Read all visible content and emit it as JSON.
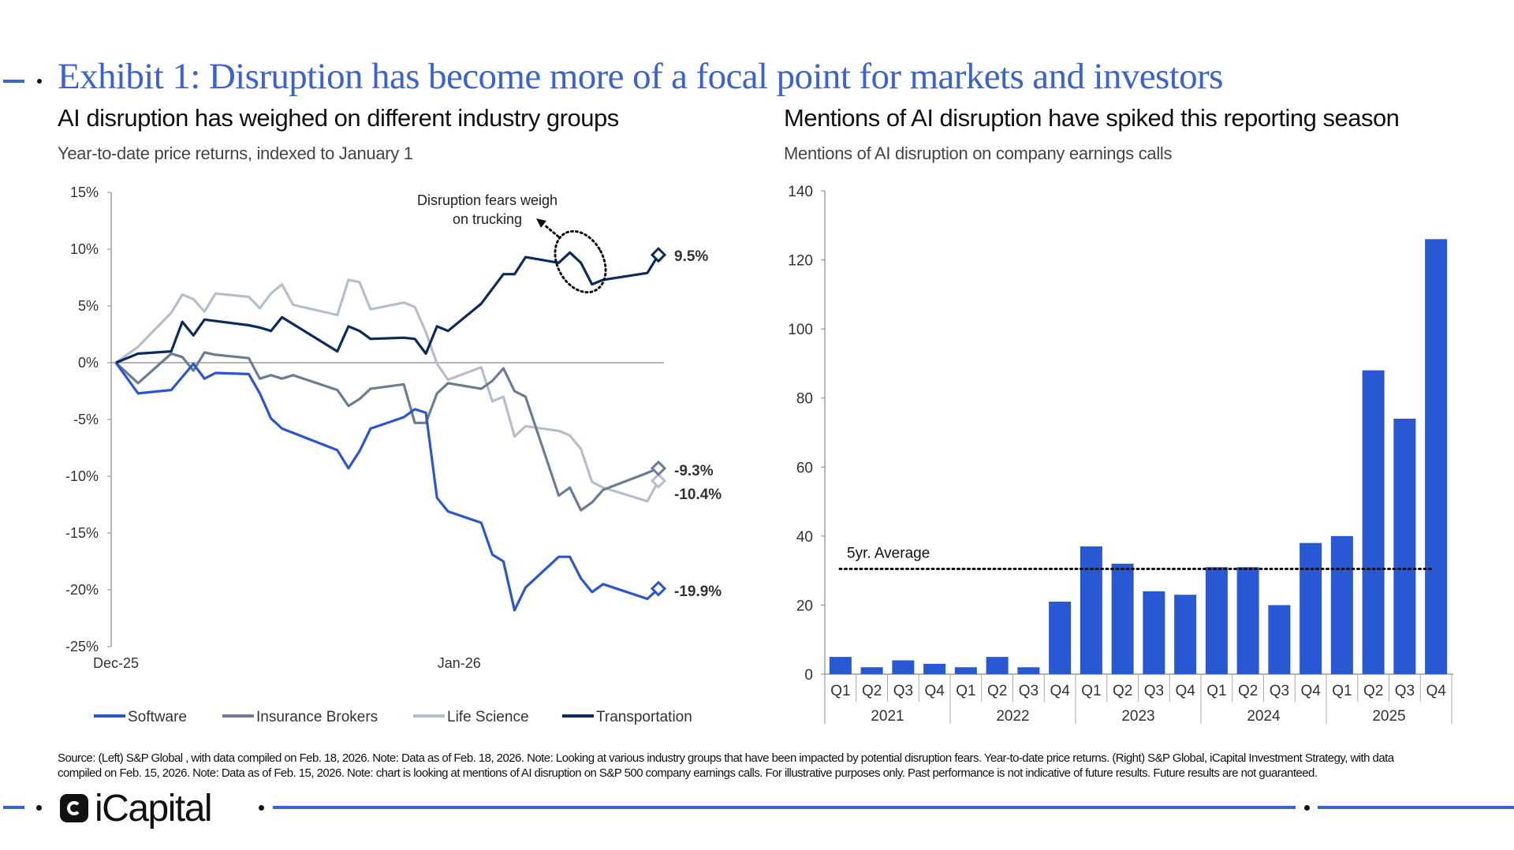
{
  "header": {
    "title": "Exhibit 1: Disruption has become more of a focal point for markets and investors"
  },
  "left_panel": {
    "title": "AI disruption has weighed on different industry groups",
    "subtitle": "Year-to-date price returns, indexed to January 1"
  },
  "right_panel": {
    "title": "Mentions of AI disruption have spiked this reporting season",
    "subtitle": "Mentions of AI disruption on company earnings calls"
  },
  "chart_data": [
    {
      "type": "line",
      "ylim": [
        -25,
        15
      ],
      "yticks": [
        15,
        10,
        5,
        0,
        -5,
        -10,
        -15,
        -20,
        -25
      ],
      "ytick_labels": [
        "15%",
        "10%",
        "5%",
        "0%",
        "-5%",
        "-10%",
        "-15%",
        "-20%",
        "-25%"
      ],
      "xlim": [
        0,
        49
      ],
      "xticks": [
        {
          "x": 0,
          "label": "Dec-25"
        },
        {
          "x": 31,
          "label": "Jan-26"
        }
      ],
      "legend_position": "bottom",
      "annotation": {
        "text_line1": "Disruption fears weigh",
        "text_line2": "on trucking"
      },
      "series": [
        {
          "name": "Software",
          "color": "#2b56d1",
          "end_label": "-19.9%",
          "points": [
            [
              0,
              0
            ],
            [
              2,
              -2.7
            ],
            [
              5,
              -2.4
            ],
            [
              7,
              -0.1
            ],
            [
              8,
              -1.4
            ],
            [
              9,
              -0.9
            ],
            [
              12,
              -1.0
            ],
            [
              13,
              -2.7
            ],
            [
              14,
              -4.9
            ],
            [
              15,
              -5.8
            ],
            [
              20,
              -7.7
            ],
            [
              21,
              -9.3
            ],
            [
              22,
              -7.8
            ],
            [
              23,
              -5.8
            ],
            [
              26,
              -4.8
            ],
            [
              27,
              -4.1
            ],
            [
              28,
              -4.4
            ],
            [
              29,
              -11.9
            ],
            [
              30,
              -13.1
            ],
            [
              33,
              -14.1
            ],
            [
              34,
              -16.9
            ],
            [
              35,
              -17.5
            ],
            [
              36,
              -21.8
            ],
            [
              37,
              -19.8
            ],
            [
              40,
              -17.1
            ],
            [
              41,
              -17.1
            ],
            [
              42,
              -19.0
            ],
            [
              43,
              -20.2
            ],
            [
              44,
              -19.5
            ],
            [
              48,
              -20.8
            ],
            [
              49,
              -19.9
            ]
          ]
        },
        {
          "name": "Insurance Brokers",
          "color": "#6b7d95",
          "end_label": "-9.3%",
          "points": [
            [
              0,
              0
            ],
            [
              2,
              -1.8
            ],
            [
              5,
              0.8
            ],
            [
              6,
              0.5
            ],
            [
              7,
              -0.7
            ],
            [
              8,
              0.9
            ],
            [
              9,
              0.7
            ],
            [
              12,
              0.4
            ],
            [
              13,
              -1.4
            ],
            [
              14,
              -1.1
            ],
            [
              15,
              -1.4
            ],
            [
              16,
              -1.1
            ],
            [
              20,
              -2.4
            ],
            [
              21,
              -3.8
            ],
            [
              22,
              -3.2
            ],
            [
              23,
              -2.3
            ],
            [
              26,
              -1.9
            ],
            [
              27,
              -5.3
            ],
            [
              28,
              -5.3
            ],
            [
              29,
              -2.7
            ],
            [
              30,
              -1.8
            ],
            [
              33,
              -2.3
            ],
            [
              34,
              -1.6
            ],
            [
              35,
              -0.5
            ],
            [
              36,
              -2.5
            ],
            [
              37,
              -3.0
            ],
            [
              40,
              -11.7
            ],
            [
              41,
              -11.0
            ],
            [
              42,
              -13.0
            ],
            [
              43,
              -12.3
            ],
            [
              44,
              -11.2
            ],
            [
              48,
              -9.7
            ],
            [
              49,
              -9.3
            ]
          ]
        },
        {
          "name": "Life Science",
          "color": "#b6bec9",
          "end_label": "-10.4%",
          "points": [
            [
              0,
              0
            ],
            [
              2,
              1.4
            ],
            [
              5,
              4.4
            ],
            [
              6,
              6.0
            ],
            [
              7,
              5.6
            ],
            [
              8,
              4.5
            ],
            [
              9,
              6.1
            ],
            [
              12,
              5.8
            ],
            [
              13,
              4.8
            ],
            [
              14,
              6.1
            ],
            [
              15,
              6.9
            ],
            [
              16,
              5.1
            ],
            [
              20,
              4.2
            ],
            [
              21,
              7.3
            ],
            [
              22,
              7.1
            ],
            [
              23,
              4.7
            ],
            [
              26,
              5.3
            ],
            [
              27,
              4.9
            ],
            [
              28,
              2.7
            ],
            [
              29,
              -0.1
            ],
            [
              30,
              -1.5
            ],
            [
              33,
              -0.4
            ],
            [
              34,
              -3.4
            ],
            [
              35,
              -3.0
            ],
            [
              36,
              -6.5
            ],
            [
              37,
              -5.6
            ],
            [
              40,
              -6.0
            ],
            [
              41,
              -6.4
            ],
            [
              42,
              -7.6
            ],
            [
              43,
              -10.5
            ],
            [
              44,
              -11.0
            ],
            [
              48,
              -12.2
            ],
            [
              49,
              -10.4
            ]
          ]
        },
        {
          "name": "Transportation",
          "color": "#0b2a5e",
          "end_label": "9.5%",
          "points": [
            [
              0,
              0
            ],
            [
              2,
              0.8
            ],
            [
              5,
              1.0
            ],
            [
              6,
              3.6
            ],
            [
              7,
              2.4
            ],
            [
              8,
              3.8
            ],
            [
              12,
              3.3
            ],
            [
              13,
              3.1
            ],
            [
              14,
              2.8
            ],
            [
              15,
              4.0
            ],
            [
              20,
              1.0
            ],
            [
              21,
              3.2
            ],
            [
              22,
              2.8
            ],
            [
              23,
              2.1
            ],
            [
              26,
              2.2
            ],
            [
              27,
              2.1
            ],
            [
              28,
              0.8
            ],
            [
              29,
              3.2
            ],
            [
              30,
              2.8
            ],
            [
              33,
              5.2
            ],
            [
              35,
              7.8
            ],
            [
              36,
              7.8
            ],
            [
              37,
              9.3
            ],
            [
              40,
              8.8
            ],
            [
              41,
              9.7
            ],
            [
              42,
              8.8
            ],
            [
              43,
              6.9
            ],
            [
              44,
              7.3
            ],
            [
              48,
              7.9
            ],
            [
              49,
              9.5
            ]
          ]
        }
      ]
    },
    {
      "type": "bar",
      "ylim": [
        0,
        140
      ],
      "yticks": [
        0,
        20,
        40,
        60,
        80,
        100,
        120,
        140
      ],
      "color": "#2858d4",
      "years": [
        "2021",
        "2022",
        "2023",
        "2024",
        "2025"
      ],
      "quarters": [
        "Q1",
        "Q2",
        "Q3",
        "Q4"
      ],
      "values": [
        5,
        2,
        4,
        3,
        2,
        5,
        2,
        21,
        37,
        32,
        24,
        23,
        31,
        31,
        20,
        38,
        40,
        88,
        74,
        126
      ],
      "average": {
        "label": "5yr. Average",
        "value": 30.5
      }
    }
  ],
  "footer": {
    "source_line1": "Source: (Left) S&P Global , with data compiled on Feb. 18, 2026. Note: Data as of Feb. 18, 2026. Note: Looking at various industry groups that have been impacted by potential disruption fears. Year-to-date price returns. (Right) S&P Global, iCapital Investment Strategy, with data",
    "source_line2": "compiled on Feb. 15, 2026. Note: Data as of Feb. 15, 2026. Note: chart is looking at mentions of AI disruption on S&P 500 company earnings calls. For illustrative purposes only. Past performance is not indicative of future results. Future results are not guaranteed.",
    "logo_text": "iCapital"
  }
}
